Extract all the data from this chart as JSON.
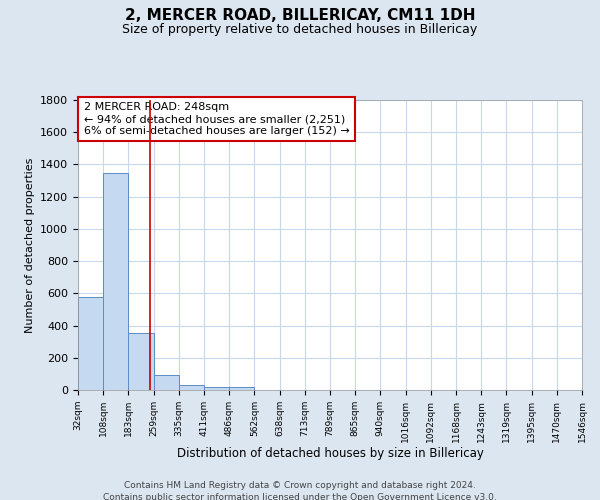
{
  "title": "2, MERCER ROAD, BILLERICAY, CM11 1DH",
  "subtitle": "Size of property relative to detached houses in Billericay",
  "xlabel": "Distribution of detached houses by size in Billericay",
  "ylabel": "Number of detached properties",
  "footnote1": "Contains HM Land Registry data © Crown copyright and database right 2024.",
  "footnote2": "Contains public sector information licensed under the Open Government Licence v3.0.",
  "annotation_line1": "2 MERCER ROAD: 248sqm",
  "annotation_line2": "← 94% of detached houses are smaller (2,251)",
  "annotation_line3": "6% of semi-detached houses are larger (152) →",
  "property_size": 248,
  "red_line_x": 248,
  "bin_edges": [
    32,
    108,
    183,
    259,
    335,
    411,
    486,
    562,
    638,
    713,
    789,
    865,
    940,
    1016,
    1092,
    1168,
    1243,
    1319,
    1395,
    1470,
    1546
  ],
  "bin_counts": [
    580,
    1350,
    355,
    95,
    32,
    20,
    18,
    0,
    0,
    0,
    0,
    0,
    0,
    0,
    0,
    0,
    0,
    0,
    0,
    0
  ],
  "bar_color": "#c5d9f0",
  "bar_edge_color": "#5b8cc8",
  "red_line_color": "#cc0000",
  "background_color": "#dce6f1",
  "plot_bg_color": "#ffffff",
  "grid_color": "#c8d8ec",
  "ylim": [
    0,
    1800
  ],
  "yticks": [
    0,
    200,
    400,
    600,
    800,
    1000,
    1200,
    1400,
    1600,
    1800
  ]
}
